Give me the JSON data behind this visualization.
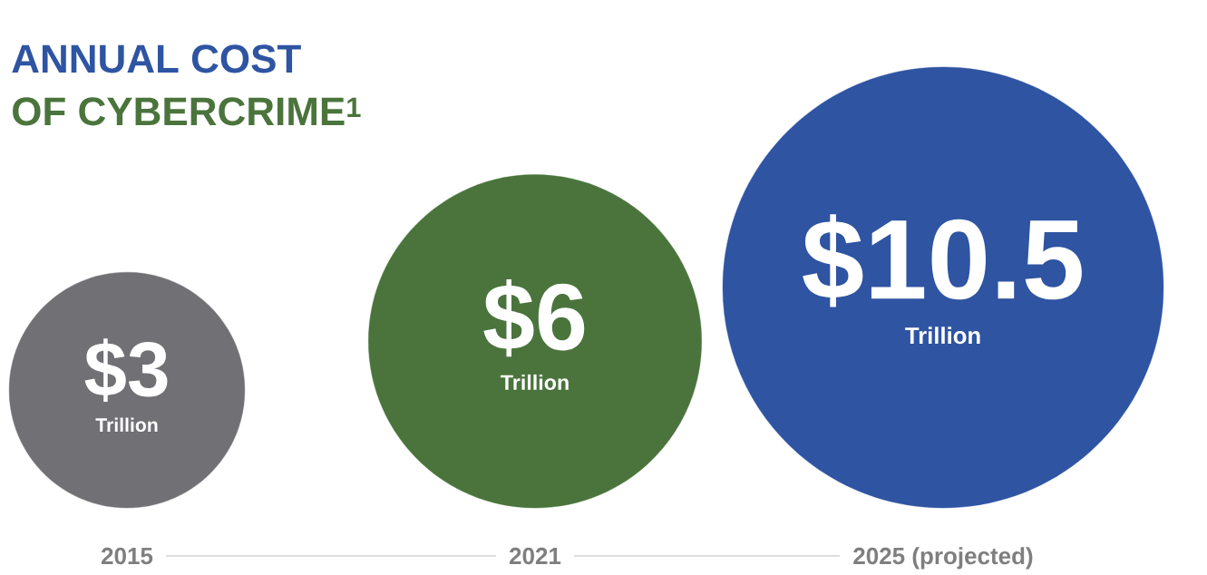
{
  "chart_data": {
    "type": "other",
    "title": "ANNUAL COST",
    "subtitle": "OF CYBERCRIME$^{1}$",
    "categories": [
      "2015",
      "2021",
      "2025 (projected)"
    ],
    "values": [
      3,
      6,
      10.5
    ],
    "value_labels": [
      "$3",
      "$6",
      "$10.5"
    ],
    "colors": [
      "#707075",
      "#4a743c",
      "#2e54a2"
    ],
    "annotations": [
      "Trillion",
      "Trillion",
      "Trillion"
    ]
  }
}
